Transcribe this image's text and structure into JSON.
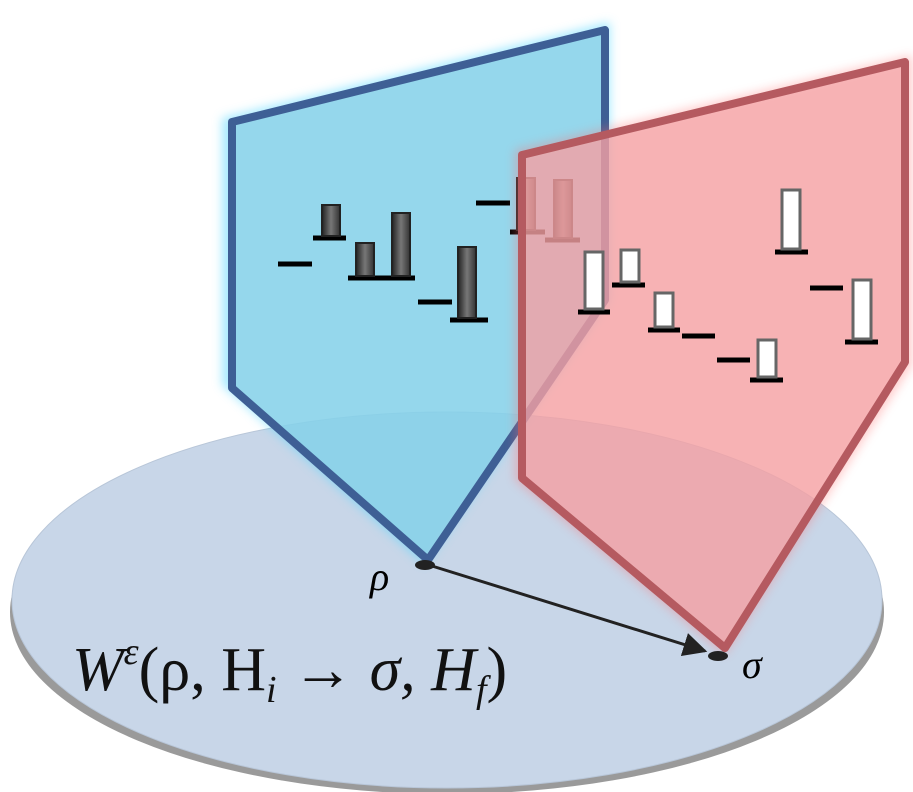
{
  "labels": {
    "rho": "ρ",
    "sigma": "σ"
  },
  "formula": {
    "base": "W",
    "sup": "ε",
    "part1": "(ρ, H",
    "sub1": "i",
    "part2": " → σ, H",
    "sub2": "f",
    "part3": ")"
  }
}
